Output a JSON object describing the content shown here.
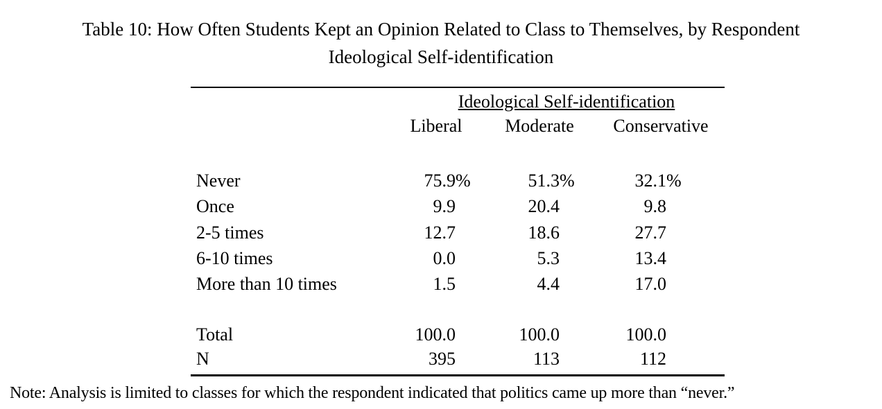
{
  "colors": {
    "background": "#ffffff",
    "text": "#000000"
  },
  "title": {
    "line1": "Table 10: How Often Students Kept an Opinion Related to Class to Themselves, by Respondent",
    "line2": "Ideological Self-identification"
  },
  "table": {
    "group_header": "Ideological Self-identification",
    "columns": [
      "Liberal",
      "Moderate",
      "Conservative"
    ],
    "rows": [
      {
        "label": "Never",
        "values": [
          "75.9",
          "51.3",
          "32.1"
        ],
        "suffix": "%"
      },
      {
        "label": "Once",
        "values": [
          "9.9",
          "20.4",
          "9.8"
        ]
      },
      {
        "label": "2-5 times",
        "values": [
          "12.7",
          "18.6",
          "27.7"
        ]
      },
      {
        "label": "6-10 times",
        "values": [
          "0.0",
          "5.3",
          "13.4"
        ]
      },
      {
        "label": "More than 10 times",
        "values": [
          "1.5",
          "4.4",
          "17.0"
        ]
      }
    ],
    "summary_rows": [
      {
        "label": "Total",
        "values": [
          "100.0",
          "100.0",
          "100.0"
        ]
      },
      {
        "label": "N",
        "values": [
          "395",
          "113",
          "112"
        ]
      }
    ]
  },
  "note": "Note: Analysis is limited to classes for which the respondent indicated that politics came up more than “never.”"
}
